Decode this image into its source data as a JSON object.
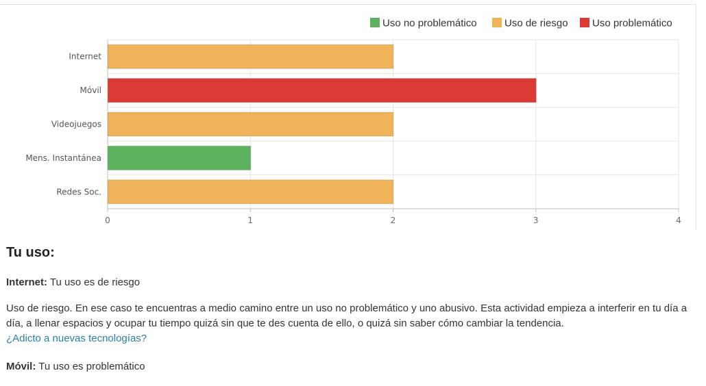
{
  "chart_data": {
    "type": "bar",
    "orientation": "horizontal",
    "categories": [
      "Internet",
      "Móvil",
      "Videojuegos",
      "Mens. Instantánea",
      "Redes Soc."
    ],
    "values": [
      2,
      3,
      2,
      1,
      2
    ],
    "value_levels": [
      "Uso de riesgo",
      "Uso problemático",
      "Uso de riesgo",
      "Uso no problemático",
      "Uso de riesgo"
    ],
    "xlim": [
      0,
      4
    ],
    "x_ticks": [
      "0",
      "1",
      "2",
      "3",
      "4"
    ],
    "grid": true,
    "legend_placement": "top-right",
    "legend": [
      {
        "label": "Uso no problemático",
        "color": "#5cb25d"
      },
      {
        "label": "Uso de riesgo",
        "color": "#f0b35a"
      },
      {
        "label": "Uso problemático",
        "color": "#db3a34"
      }
    ]
  },
  "results": {
    "title": "Tu uso:",
    "items": [
      {
        "name": "Internet:",
        "result": "Tu uso es de riesgo",
        "description": "Uso de riesgo. En ese caso te encuentras a medio camino entre un uso no problemático y uno abusivo. Esta actividad empieza a interferir en tu día a día, a llenar espacios y ocupar tu tiempo quizá sin que te des cuenta de ello, o quizá sin saber cómo cambiar la tendencia.",
        "link": "¿Adicto a nuevas tecnologías?"
      },
      {
        "name": "Móvil:",
        "result": "Tu uso es problemático"
      }
    ]
  }
}
